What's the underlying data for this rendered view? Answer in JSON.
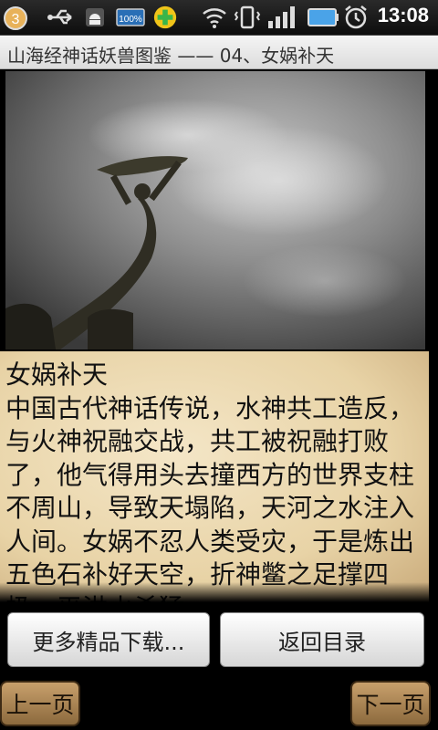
{
  "status_bar": {
    "notification_count": "3",
    "time": "13:08",
    "battery_label": "100%",
    "icons": [
      "usb-icon",
      "android-debug-icon",
      "battery-saver-icon",
      "health-plus-icon",
      "wifi-icon",
      "vibrate-icon",
      "signal-icon",
      "battery-icon",
      "alarm-icon"
    ]
  },
  "title_bar": {
    "title": "山海经神话妖兽图鉴 —— 04、女娲补天"
  },
  "article": {
    "text": "女娲补天\n中国古代神话传说，水神共工造反，与火神祝融交战，共工被祝融打败了，他气得用头去撞西方的世界支柱不周山，导致天塌陷，天河之水注入人间。女娲不忍人类受灾，于是炼出五色石补好天空，折神鳖之足撑四极，平洪水杀猛"
  },
  "buttons": {
    "more_label": "更多精品下载...",
    "back_label": "返回目录",
    "prev_label": "上一页",
    "next_label": "下一页"
  }
}
